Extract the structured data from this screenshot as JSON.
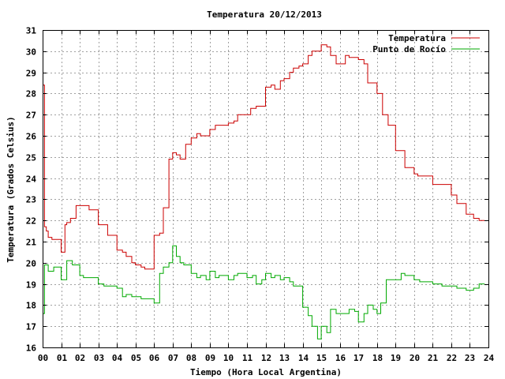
{
  "chart_data": {
    "type": "line",
    "title": "Temperatura 20/12/2013",
    "xlabel": "Tiempo (Hora Local Argentina)",
    "ylabel": "Temperatura (Grados Celsius)",
    "xlim": [
      0,
      24
    ],
    "ylim": [
      16,
      31
    ],
    "grid": true,
    "legend_position": "top-right",
    "x_tick_labels": [
      "00",
      "01",
      "02",
      "03",
      "04",
      "05",
      "06",
      "07",
      "08",
      "09",
      "10",
      "11",
      "12",
      "13",
      "14",
      "15",
      "16",
      "17",
      "18",
      "19",
      "20",
      "21",
      "22",
      "23",
      "24"
    ],
    "y_tick_labels": [
      "16",
      "17",
      "18",
      "19",
      "20",
      "21",
      "22",
      "23",
      "24",
      "25",
      "26",
      "27",
      "28",
      "29",
      "30",
      "31"
    ],
    "series": [
      {
        "name": "Temperatura",
        "color": "#cc0000",
        "x": [
          0,
          0.05,
          0.1,
          0.2,
          0.3,
          0.5,
          0.8,
          1.0,
          1.2,
          1.3,
          1.5,
          1.8,
          2.0,
          2.3,
          2.5,
          3.0,
          3.3,
          3.5,
          4.0,
          4.3,
          4.5,
          4.8,
          5.0,
          5.3,
          5.5,
          6.0,
          6.3,
          6.5,
          6.8,
          7.0,
          7.2,
          7.4,
          7.7,
          8.0,
          8.3,
          8.5,
          9.0,
          9.3,
          9.5,
          10.0,
          10.3,
          10.5,
          11.0,
          11.2,
          11.5,
          12.0,
          12.3,
          12.5,
          12.8,
          13.0,
          13.3,
          13.5,
          13.8,
          14.0,
          14.3,
          14.5,
          15.0,
          15.3,
          15.5,
          15.8,
          16.0,
          16.3,
          16.5,
          17.0,
          17.3,
          17.5,
          18.0,
          18.3,
          18.6,
          19.0,
          19.3,
          19.5,
          20.0,
          20.2,
          20.5,
          21.0,
          21.5,
          22.0,
          22.3,
          22.8,
          23.2,
          23.5,
          23.8
        ],
        "values": [
          28.4,
          28.4,
          21.7,
          21.5,
          21.2,
          21.1,
          21.1,
          20.5,
          21.8,
          21.9,
          22.1,
          22.7,
          22.7,
          22.7,
          22.5,
          21.8,
          21.8,
          21.3,
          20.6,
          20.5,
          20.3,
          20.0,
          19.9,
          19.8,
          19.7,
          21.3,
          21.4,
          22.6,
          24.9,
          25.2,
          25.1,
          24.9,
          25.6,
          25.9,
          26.1,
          26.0,
          26.3,
          26.5,
          26.5,
          26.6,
          26.7,
          27.0,
          27.0,
          27.3,
          27.4,
          28.3,
          28.4,
          28.2,
          28.6,
          28.7,
          29.0,
          29.2,
          29.3,
          29.4,
          29.8,
          30.0,
          30.3,
          30.2,
          29.8,
          29.4,
          29.4,
          29.8,
          29.7,
          29.6,
          29.4,
          28.5,
          28.0,
          27.0,
          26.5,
          25.3,
          25.3,
          24.5,
          24.2,
          24.1,
          24.1,
          23.7,
          23.7,
          23.2,
          22.8,
          22.3,
          22.1,
          22.0,
          22.0
        ]
      },
      {
        "name": "Punto de Rocío",
        "color": "#00aa00",
        "x": [
          0,
          0.05,
          0.1,
          0.3,
          0.6,
          1.0,
          1.3,
          1.6,
          2.0,
          2.2,
          2.5,
          3.0,
          3.3,
          3.5,
          4.0,
          4.3,
          4.5,
          4.8,
          5.0,
          5.3,
          5.5,
          6.0,
          6.3,
          6.5,
          6.8,
          7.0,
          7.2,
          7.4,
          7.6,
          8.0,
          8.3,
          8.5,
          8.8,
          9.0,
          9.3,
          9.5,
          10.0,
          10.3,
          10.5,
          11.0,
          11.3,
          11.5,
          11.8,
          12.0,
          12.3,
          12.5,
          12.8,
          13.0,
          13.3,
          13.5,
          14.0,
          14.3,
          14.5,
          14.8,
          15.0,
          15.3,
          15.5,
          15.8,
          16.0,
          16.3,
          16.5,
          16.8,
          17.0,
          17.3,
          17.5,
          17.8,
          18.0,
          18.2,
          18.5,
          19.0,
          19.3,
          19.5,
          20.0,
          20.3,
          20.5,
          21.0,
          21.5,
          22.0,
          22.3,
          22.8,
          23.2,
          23.5,
          23.8
        ],
        "values": [
          17.6,
          17.6,
          19.9,
          19.6,
          19.8,
          19.2,
          20.1,
          19.9,
          19.4,
          19.3,
          19.3,
          19.0,
          18.9,
          18.9,
          18.8,
          18.4,
          18.5,
          18.4,
          18.4,
          18.3,
          18.3,
          18.1,
          19.5,
          19.8,
          20.0,
          20.8,
          20.3,
          20.0,
          19.9,
          19.5,
          19.3,
          19.4,
          19.2,
          19.6,
          19.3,
          19.4,
          19.2,
          19.4,
          19.5,
          19.3,
          19.4,
          19.0,
          19.2,
          19.5,
          19.3,
          19.4,
          19.2,
          19.3,
          19.1,
          18.9,
          17.9,
          17.5,
          17.0,
          16.4,
          17.0,
          16.7,
          17.8,
          17.6,
          17.6,
          17.6,
          17.8,
          17.7,
          17.2,
          17.6,
          18.0,
          17.8,
          17.6,
          18.1,
          19.2,
          19.2,
          19.5,
          19.4,
          19.2,
          19.1,
          19.1,
          19.0,
          18.9,
          18.9,
          18.8,
          18.7,
          18.8,
          19.0,
          19.0
        ]
      }
    ]
  }
}
